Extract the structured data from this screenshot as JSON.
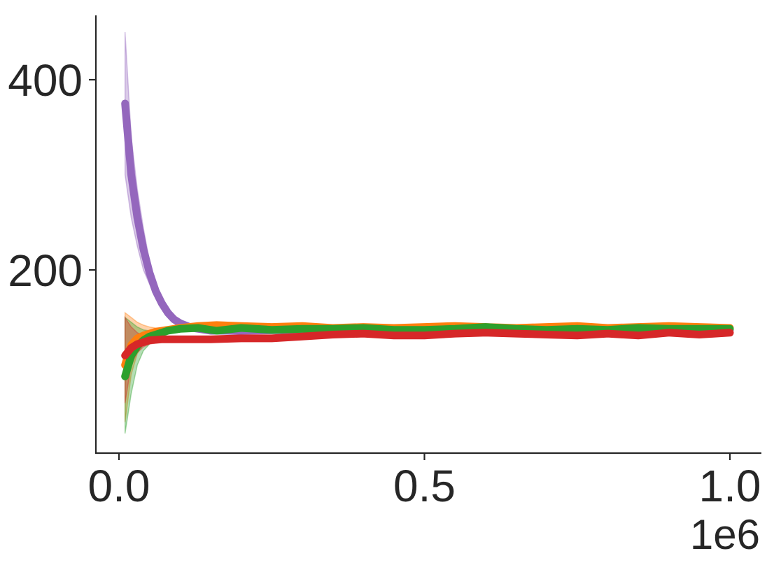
{
  "chart_data": {
    "type": "line",
    "title": "",
    "xlabel": "",
    "ylabel": "",
    "x_offset_label": "1e6",
    "xlim": [
      -0.04,
      1.05
    ],
    "ylim": [
      0,
      465
    ],
    "x_ticks": [
      0.0,
      0.5,
      1.0
    ],
    "x_tick_labels": [
      "0.0",
      "0.5",
      "1.0"
    ],
    "y_ticks": [
      200,
      400
    ],
    "y_tick_labels": [
      "200",
      "400"
    ],
    "grid": false,
    "legend": false,
    "series": [
      {
        "color": "#9467bd",
        "x": [
          0.01,
          0.02,
          0.03,
          0.04,
          0.05,
          0.06,
          0.07,
          0.08,
          0.09,
          0.1,
          0.12,
          0.15,
          0.2,
          0.3,
          0.4,
          0.5,
          0.6,
          0.7,
          0.8,
          0.9,
          0.95,
          1.0
        ],
        "y": [
          375,
          300,
          255,
          222,
          197,
          178,
          165,
          155,
          148,
          144,
          139,
          136,
          136,
          137,
          137,
          137,
          137,
          137,
          137,
          137,
          136,
          137
        ],
        "band_low": [
          300,
          255,
          225,
          200,
          185,
          170,
          160,
          152,
          146,
          142,
          138,
          135,
          135,
          136,
          136,
          136,
          136,
          136,
          136,
          136,
          135,
          136
        ],
        "band_high": [
          450,
          340,
          285,
          244,
          209,
          186,
          170,
          158,
          150,
          146,
          140,
          137,
          137,
          138,
          138,
          138,
          138,
          138,
          138,
          138,
          137,
          138
        ]
      },
      {
        "color": "#ff7f0e",
        "x": [
          0.01,
          0.02,
          0.03,
          0.04,
          0.05,
          0.06,
          0.08,
          0.1,
          0.13,
          0.16,
          0.2,
          0.25,
          0.3,
          0.35,
          0.4,
          0.45,
          0.5,
          0.55,
          0.6,
          0.65,
          0.7,
          0.75,
          0.8,
          0.85,
          0.9,
          0.95,
          1.0
        ],
        "y": [
          100,
          121,
          128,
          131,
          133,
          135,
          137,
          139,
          141,
          142,
          141,
          140,
          141,
          139,
          140,
          139,
          140,
          141,
          140,
          139,
          140,
          141,
          139,
          140,
          141,
          140,
          139
        ],
        "band_low": [
          40,
          90,
          112,
          122,
          127,
          131,
          135,
          137,
          139,
          140,
          139,
          138,
          139,
          137,
          138,
          137,
          138,
          139,
          138,
          137,
          138,
          139,
          137,
          138,
          139,
          138,
          137
        ],
        "band_high": [
          155,
          150,
          145,
          142,
          140,
          139,
          139,
          141,
          143,
          144,
          143,
          142,
          143,
          141,
          142,
          141,
          142,
          143,
          142,
          141,
          142,
          143,
          141,
          142,
          143,
          142,
          141
        ]
      },
      {
        "color": "#2ca02c",
        "x": [
          0.01,
          0.02,
          0.03,
          0.04,
          0.05,
          0.06,
          0.08,
          0.1,
          0.13,
          0.16,
          0.2,
          0.25,
          0.3,
          0.35,
          0.4,
          0.45,
          0.5,
          0.55,
          0.6,
          0.65,
          0.7,
          0.75,
          0.8,
          0.85,
          0.9,
          0.95,
          1.0
        ],
        "y": [
          88,
          110,
          120,
          126,
          130,
          132,
          136,
          138,
          139,
          136,
          139,
          137,
          138,
          138,
          139,
          137,
          137,
          138,
          140,
          138,
          137,
          138,
          137,
          139,
          138,
          138,
          138
        ],
        "band_low": [
          28,
          70,
          100,
          115,
          122,
          127,
          133,
          136,
          137,
          134,
          137,
          135,
          136,
          136,
          137,
          135,
          135,
          136,
          138,
          136,
          135,
          136,
          135,
          137,
          136,
          136,
          136
        ],
        "band_high": [
          150,
          145,
          140,
          137,
          136,
          137,
          139,
          140,
          141,
          138,
          141,
          139,
          140,
          140,
          141,
          139,
          139,
          140,
          142,
          140,
          139,
          140,
          139,
          141,
          140,
          140,
          140
        ]
      },
      {
        "color": "#d62728",
        "x": [
          0.01,
          0.02,
          0.03,
          0.04,
          0.05,
          0.07,
          0.1,
          0.15,
          0.2,
          0.25,
          0.3,
          0.35,
          0.4,
          0.45,
          0.5,
          0.55,
          0.6,
          0.65,
          0.7,
          0.75,
          0.8,
          0.85,
          0.9,
          0.95,
          1.0
        ],
        "y": [
          110,
          118,
          122,
          124,
          126,
          127,
          127,
          127,
          128,
          128,
          130,
          132,
          133,
          131,
          131,
          133,
          134,
          133,
          132,
          131,
          133,
          131,
          134,
          132,
          134
        ],
        "band_low": [
          60,
          100,
          113,
          119,
          122,
          124,
          125,
          125,
          126,
          126,
          128,
          130,
          131,
          129,
          129,
          131,
          132,
          131,
          130,
          129,
          131,
          129,
          132,
          130,
          132
        ],
        "band_high": [
          150,
          140,
          134,
          131,
          130,
          130,
          129,
          129,
          130,
          130,
          132,
          134,
          135,
          133,
          133,
          135,
          136,
          135,
          134,
          133,
          135,
          133,
          136,
          134,
          136
        ]
      }
    ]
  }
}
